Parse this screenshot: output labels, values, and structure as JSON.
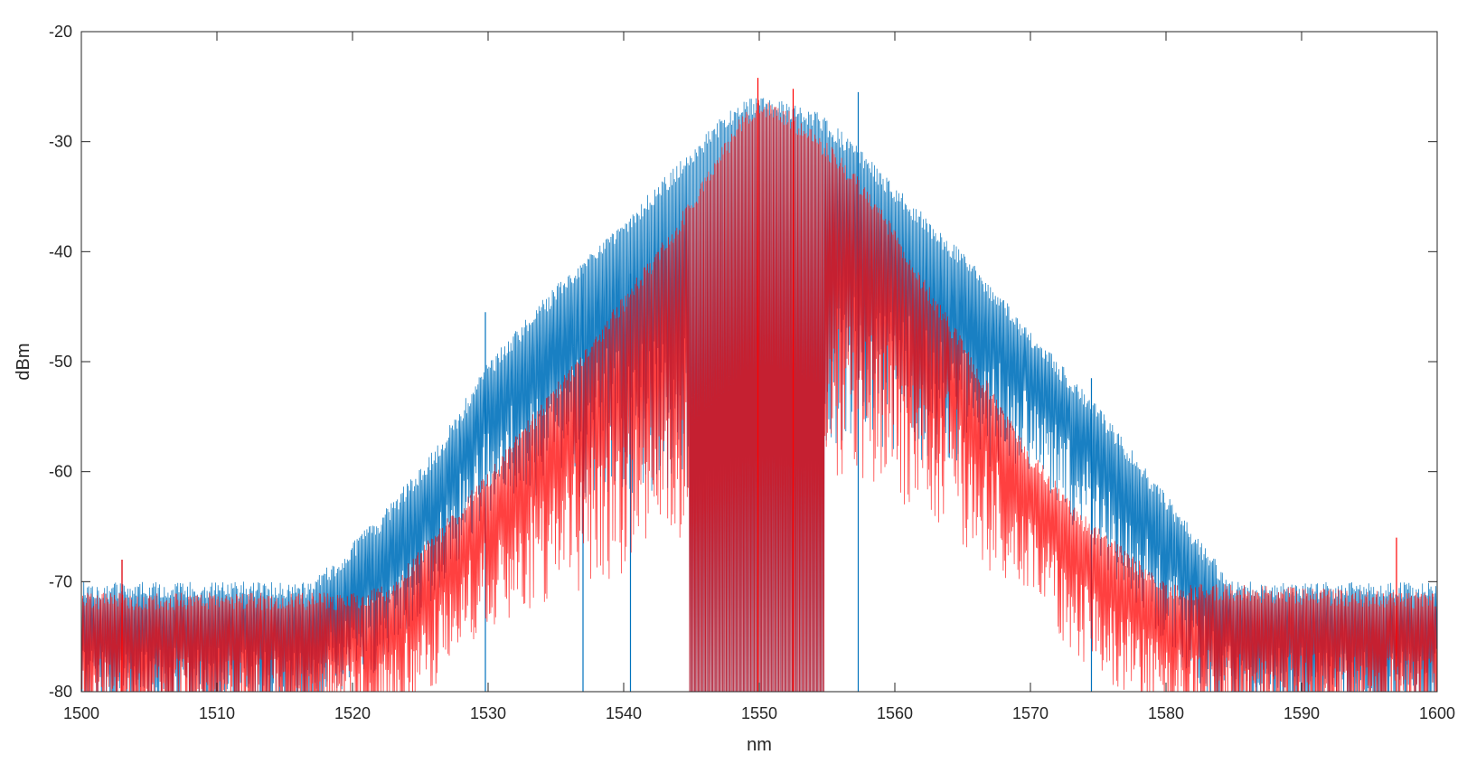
{
  "chart_data": {
    "type": "line",
    "title": "",
    "xlabel": "nm",
    "ylabel": "dBm",
    "xlim": [
      1500,
      1600
    ],
    "ylim": [
      -80,
      -20
    ],
    "xticks": [
      1500,
      1510,
      1520,
      1530,
      1540,
      1550,
      1560,
      1570,
      1580,
      1590,
      1600
    ],
    "yticks": [
      -80,
      -70,
      -60,
      -50,
      -40,
      -30,
      -20
    ],
    "grid": false,
    "legend": "none",
    "series": [
      {
        "color": "#0072BD",
        "description": "comb spectrum peak envelope (points are [nm, dBm])",
        "envelope": [
          [
            1500,
            -70
          ],
          [
            1510,
            -70
          ],
          [
            1517,
            -70
          ],
          [
            1522,
            -64
          ],
          [
            1526,
            -58
          ],
          [
            1530,
            -50
          ],
          [
            1535,
            -43
          ],
          [
            1540,
            -37
          ],
          [
            1544,
            -32
          ],
          [
            1547,
            -28
          ],
          [
            1549,
            -26
          ],
          [
            1551,
            -26
          ],
          [
            1554,
            -27
          ],
          [
            1557,
            -30
          ],
          [
            1560,
            -34
          ],
          [
            1565,
            -40
          ],
          [
            1570,
            -47
          ],
          [
            1575,
            -54
          ],
          [
            1580,
            -62
          ],
          [
            1583,
            -67
          ],
          [
            1585,
            -70
          ],
          [
            1600,
            -70
          ]
        ],
        "spurs": [
          [
            1529.8,
            -45.5
          ],
          [
            1537,
            -42
          ],
          [
            1540.5,
            -42
          ],
          [
            1557.3,
            -25.5
          ],
          [
            1574.5,
            -51.5
          ],
          [
            1503,
            -68
          ]
        ]
      },
      {
        "color": "#FF0000",
        "description": "comb spectrum peak envelope (points are [nm, dBm])",
        "envelope": [
          [
            1500,
            -71
          ],
          [
            1520,
            -71
          ],
          [
            1523,
            -70
          ],
          [
            1525,
            -67
          ],
          [
            1530,
            -60
          ],
          [
            1535,
            -52
          ],
          [
            1540,
            -44
          ],
          [
            1544,
            -37
          ],
          [
            1547,
            -31
          ],
          [
            1549,
            -27
          ],
          [
            1550,
            -26
          ],
          [
            1552,
            -27
          ],
          [
            1555,
            -30
          ],
          [
            1558,
            -34
          ],
          [
            1562,
            -42
          ],
          [
            1566,
            -50
          ],
          [
            1570,
            -58
          ],
          [
            1574,
            -64
          ],
          [
            1577,
            -67
          ],
          [
            1580,
            -70
          ],
          [
            1600,
            -71
          ]
        ],
        "spurs": [
          [
            1549.9,
            -24.2
          ],
          [
            1552.5,
            -25.2
          ],
          [
            1503,
            -68
          ],
          [
            1597,
            -66
          ]
        ]
      }
    ]
  }
}
